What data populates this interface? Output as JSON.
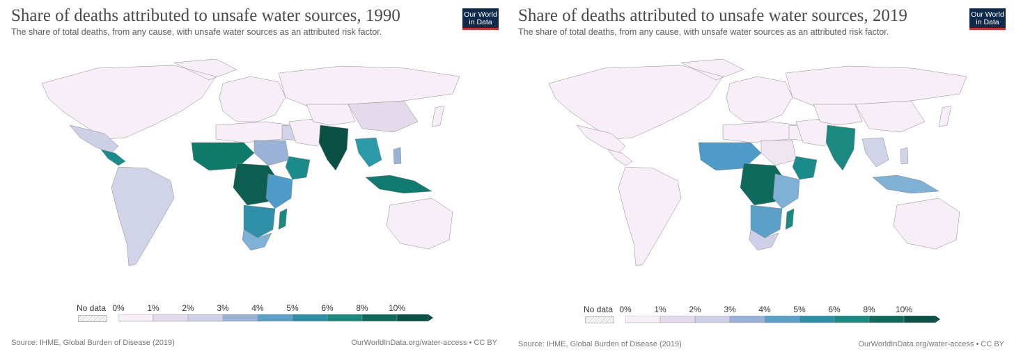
{
  "panels": [
    {
      "title": "Share of deaths attributed to unsafe water sources, 1990",
      "subtitle": "The share of total deaths, from any cause, with unsafe water sources as an attributed risk factor.",
      "logo_line1": "Our World",
      "logo_line2": "in Data",
      "footer_source": "Source: IHME, Global Burden of Disease (2019)",
      "footer_link": "OurWorldInData.org/water-access • CC BY",
      "region_colors": {
        "north_america": "#f7eef8",
        "mexico": "#cdd0e6",
        "central_america": "#1a8a8a",
        "south_america": "#d1d3e8",
        "europe": "#f7eef8",
        "russia": "#f7eef8",
        "north_africa": "#f7eef8",
        "egypt": "#d1d3e8",
        "sahel_west": "#0e7a6a",
        "sudan": "#9ab2d6",
        "ethiopia": "#1a8a8a",
        "central_africa": "#0b5e50",
        "east_africa": "#4e9ac8",
        "southern_africa": "#2f8fa8",
        "south_africa": "#7fb0d6",
        "madagascar": "#1a8a80",
        "middle_east": "#f7eef8",
        "central_asia": "#f7eef8",
        "mongolia_china_w": "#e3dbec",
        "india": "#0b5045",
        "southeast_asia": "#2a9aa8",
        "indonesia": "#0f7a70",
        "australia": "#f7eef8",
        "japan": "#f7eef8",
        "philippines": "#9ab2d6"
      },
      "legend": {
        "nodata": "No data",
        "ticks": [
          "0%",
          "1%",
          "2%",
          "3%",
          "4%",
          "5%",
          "6%",
          "8%",
          "10%"
        ]
      }
    },
    {
      "title": "Share of deaths attributed to unsafe water sources, 2019",
      "subtitle": "The share of total deaths, from any cause, with unsafe water sources as an attributed risk factor.",
      "logo_line1": "Our World",
      "logo_line2": "in Data",
      "footer_source": "Source: IHME, Global Burden of Disease (2019)",
      "footer_link": "OurWorldInData.org/water-access • CC BY",
      "region_colors": {
        "north_america": "#f7eef8",
        "mexico": "#f7eef8",
        "central_america": "#f7eef8",
        "south_america": "#f7eef8",
        "europe": "#f7eef8",
        "russia": "#f7eef8",
        "north_africa": "#f7eef8",
        "egypt": "#f7eef8",
        "sahel_west": "#4e9ac8",
        "sudan": "#f0e6f2",
        "ethiopia": "#1a8a8a",
        "central_africa": "#0e6a5a",
        "east_africa": "#7fb0d6",
        "southern_africa": "#5aa0c8",
        "south_africa": "#cdd0e6",
        "madagascar": "#1a8a80",
        "middle_east": "#f7eef8",
        "central_asia": "#f7eef8",
        "mongolia_china_w": "#f7eef8",
        "india": "#1a8a80",
        "southeast_asia": "#d1d3e8",
        "indonesia": "#7fb0d6",
        "australia": "#f7eef8",
        "japan": "#f7eef8",
        "philippines": "#d1d3e8"
      },
      "legend": {
        "nodata": "No data",
        "ticks": [
          "0%",
          "1%",
          "2%",
          "3%",
          "4%",
          "5%",
          "6%",
          "8%",
          "10%"
        ]
      }
    }
  ],
  "legend_bin_colors": [
    "#f7eef8",
    "#e3dbec",
    "#cdd0e6",
    "#9ab2d6",
    "#5aa0c8",
    "#2f8fa8",
    "#1a8a80",
    "#0e6a5a",
    "#0b5045"
  ]
}
